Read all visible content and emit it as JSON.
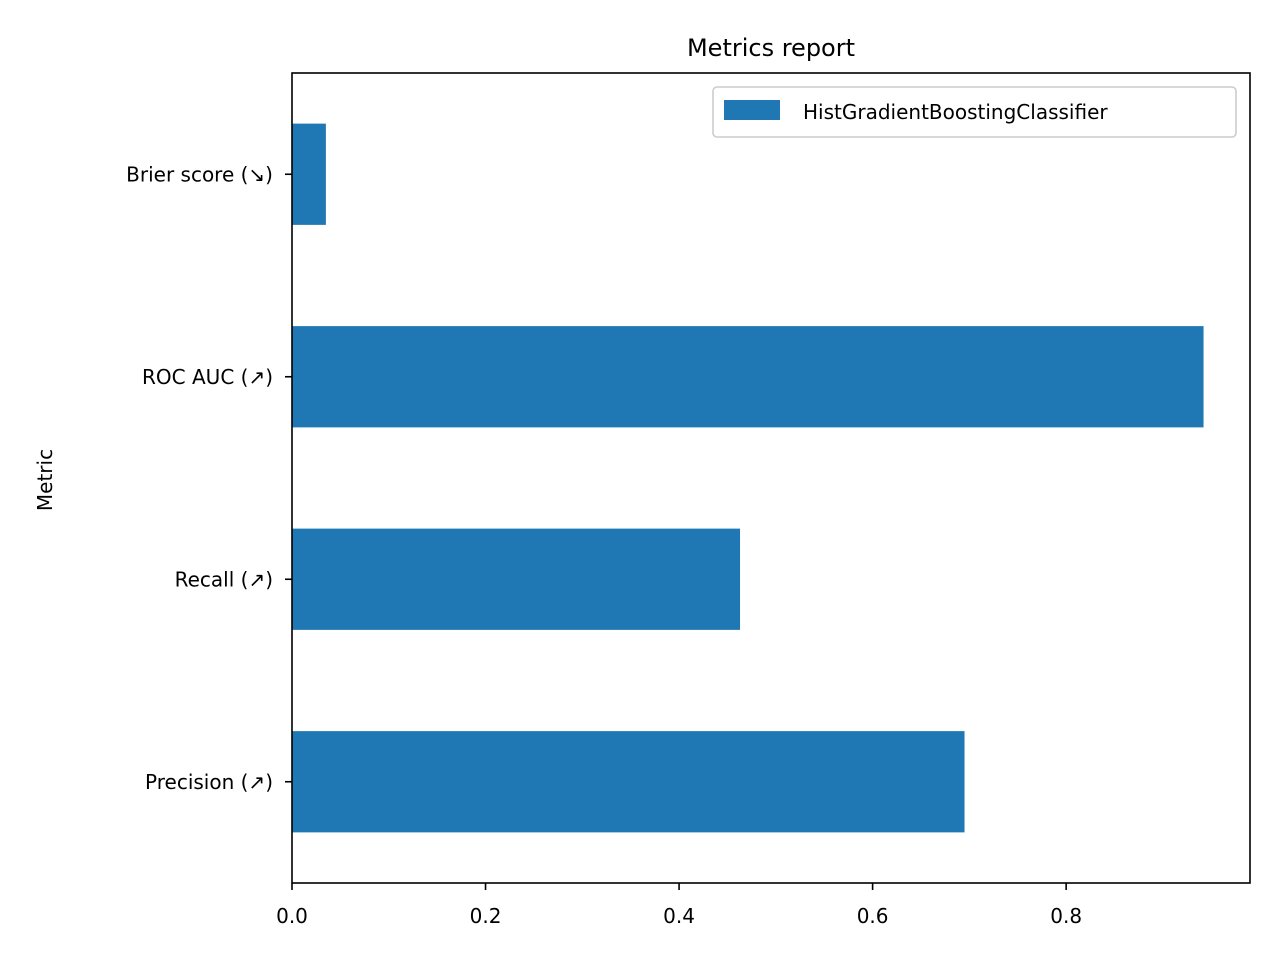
{
  "chart_data": {
    "type": "bar",
    "orientation": "horizontal",
    "title": "Metrics report",
    "xlabel": "",
    "ylabel": "Metric",
    "categories": [
      "Precision (↗)",
      "Recall (↗)",
      "ROC AUC (↗)",
      "Brier score (↘)"
    ],
    "series": [
      {
        "name": "HistGradientBoostingClassifier",
        "color": "#1f77b4",
        "values": [
          0.695,
          0.463,
          0.942,
          0.035
        ]
      }
    ],
    "xlim": [
      0.0,
      0.99
    ],
    "xticks": [
      "0.0",
      "0.2",
      "0.4",
      "0.6",
      "0.8"
    ],
    "grid": false,
    "legend_position": "top-right"
  }
}
